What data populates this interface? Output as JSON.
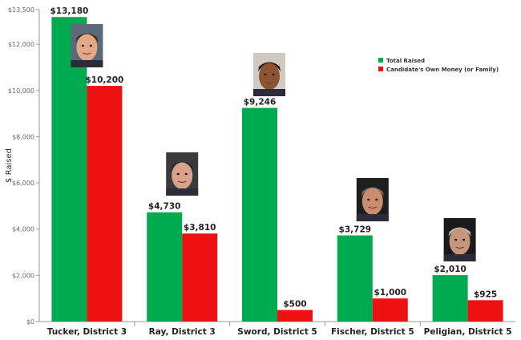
{
  "chart_data": {
    "type": "bar",
    "ylabel": "$ Raised",
    "xlabel": "",
    "ylim": [
      0,
      13500
    ],
    "y_ticks": [
      0,
      2000,
      4000,
      6000,
      8000,
      10000,
      12000,
      13500
    ],
    "y_tick_labels": [
      "$0",
      "$2,000",
      "$4,000",
      "$6,000",
      "$8,000",
      "$10,000",
      "$12,000",
      "$13,500"
    ],
    "categories": [
      "Tucker, District 3",
      "Ray, District 3",
      "Sword, District 5",
      "Fischer, District 5",
      "Peligian, District 5"
    ],
    "series": [
      {
        "name": "Total Raised",
        "color": "#00aa4f",
        "values": [
          13180,
          4730,
          9246,
          3729,
          2010
        ],
        "labels": [
          "$13,180",
          "$4,730",
          "$9,246",
          "$3,729",
          "$2,010"
        ]
      },
      {
        "name": "Candidate's Own Money (or Family)",
        "color": "#ee1111",
        "values": [
          10200,
          3810,
          500,
          1000,
          925
        ],
        "labels": [
          "$10,200",
          "$3,810",
          "$500",
          "$1,000",
          "$925"
        ]
      }
    ],
    "legend_position": "top-right",
    "grid": false,
    "candidate_photos": true
  }
}
